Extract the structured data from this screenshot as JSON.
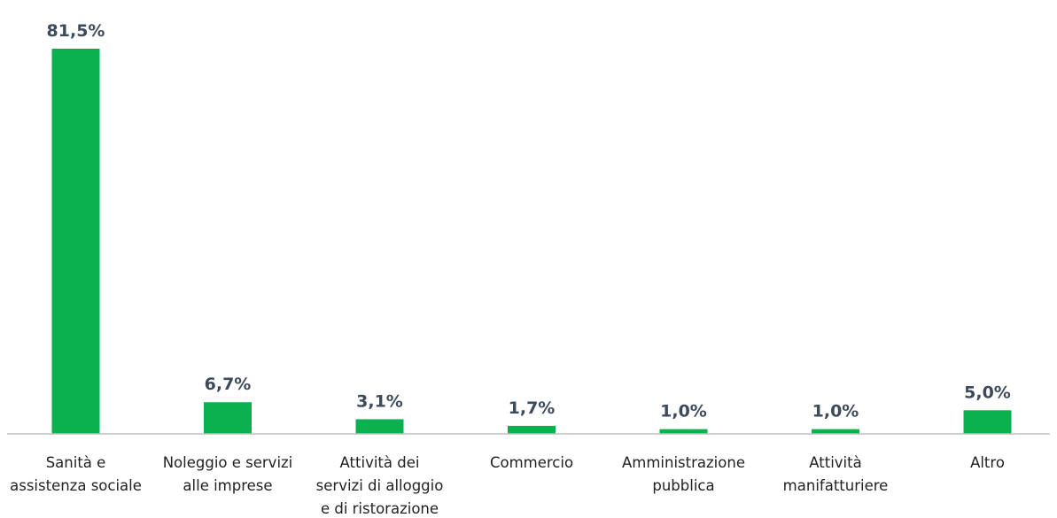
{
  "chart_data": {
    "type": "bar",
    "categories": [
      [
        "Sanità e",
        "assistenza sociale"
      ],
      [
        "Noleggio e servizi",
        "alle imprese"
      ],
      [
        "Attività dei",
        "servizi di alloggio",
        "e di ristorazione"
      ],
      [
        "Commercio"
      ],
      [
        "Amministrazione",
        "pubblica"
      ],
      [
        "Attività",
        "manifatturiere"
      ],
      [
        "Altro"
      ]
    ],
    "values": [
      81.5,
      6.7,
      3.1,
      1.7,
      1.0,
      1.0,
      5.0
    ],
    "value_labels": [
      "81,5%",
      "6,7%",
      "3,1%",
      "1,7%",
      "1,0%",
      "1,0%",
      "5,0%"
    ],
    "title": "",
    "xlabel": "",
    "ylabel": "",
    "ylim": [
      0,
      81.5
    ],
    "grid": false,
    "legend": "none",
    "bar_color": "#0bb14f",
    "axis_color": "#bfbfbf",
    "label_color": "#3d4a5c"
  }
}
